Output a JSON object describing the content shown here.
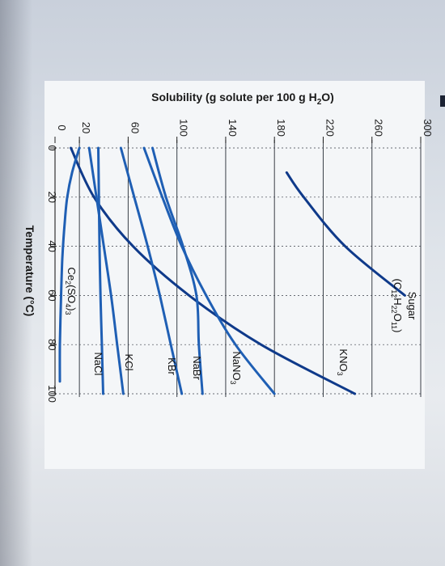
{
  "chart_data": {
    "type": "line",
    "ylabel": "Solubility (g solute per 100 g H",
    "ylabel_sub": "2",
    "ylabel_end": "O)",
    "xlabel": "Temperature (°C)",
    "xlim": [
      0,
      100
    ],
    "ylim": [
      0,
      300
    ],
    "x_ticks": [
      0,
      20,
      40,
      60,
      80,
      100
    ],
    "y_ticks": [
      0,
      20,
      60,
      100,
      140,
      180,
      220,
      260,
      300
    ],
    "grid": true,
    "orientation": "rotated-90-clockwise",
    "line_color": "#1f5fb4",
    "dark_line_color": "#0f3a8a",
    "series": [
      {
        "name": "Sugar (C12H22O11)",
        "label_lines": [
          "Sugar",
          "(C12H22O11)"
        ],
        "x": [
          10,
          20,
          40,
          60
        ],
        "y": [
          190,
          204,
          238,
          287
        ]
      },
      {
        "name": "KNO3",
        "label_lines": [
          "KNO3"
        ],
        "x": [
          0,
          20,
          40,
          60,
          80,
          100
        ],
        "y": [
          13,
          32,
          64,
          110,
          169,
          246
        ]
      },
      {
        "name": "NaNO3",
        "label_lines": [
          "NaNO3"
        ],
        "x": [
          0,
          20,
          40,
          60,
          80,
          100
        ],
        "y": [
          73,
          88,
          104,
          124,
          148,
          180
        ]
      },
      {
        "name": "NaBr",
        "label_lines": [
          "NaBr"
        ],
        "x": [
          0,
          20,
          40,
          60,
          80,
          100
        ],
        "y": [
          80,
          91,
          105,
          116,
          118,
          121
        ]
      },
      {
        "name": "KBr",
        "label_lines": [
          "KBr"
        ],
        "x": [
          0,
          20,
          40,
          60,
          80,
          100
        ],
        "y": [
          54,
          65,
          76,
          86,
          95,
          104
        ]
      },
      {
        "name": "KCl",
        "label_lines": [
          "KCl"
        ],
        "x": [
          0,
          20,
          40,
          60,
          80,
          100
        ],
        "y": [
          28,
          34,
          40,
          46,
          51,
          56
        ]
      },
      {
        "name": "NaCl",
        "label_lines": [
          "NaCl"
        ],
        "x": [
          0,
          20,
          40,
          60,
          80,
          100
        ],
        "y": [
          35.5,
          36,
          36.5,
          37.3,
          38.4,
          39.5
        ]
      },
      {
        "name": "Ce2(SO4)3",
        "label_lines": [
          "Ce2(SO4)3"
        ],
        "x": [
          0,
          10,
          20,
          30,
          45,
          60,
          80,
          95
        ],
        "y": [
          20,
          14,
          10,
          8,
          6,
          5,
          4,
          4
        ]
      }
    ]
  }
}
